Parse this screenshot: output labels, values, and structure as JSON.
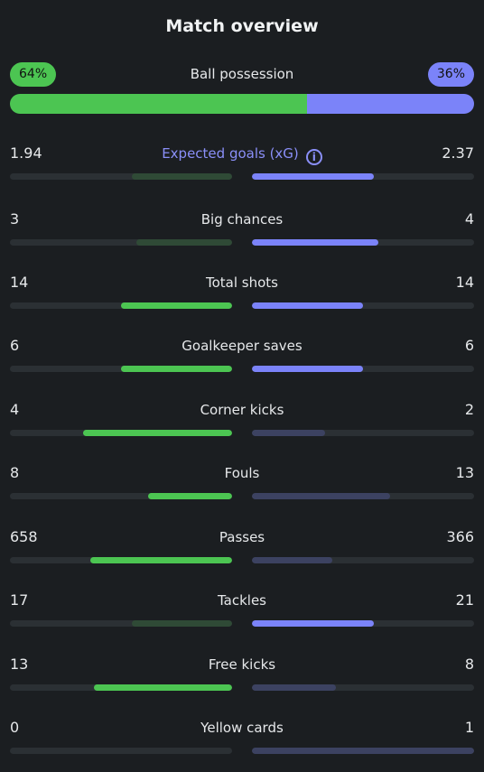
{
  "title": "Match overview",
  "possession": {
    "label": "Ball possession",
    "home": "64%",
    "away": "36%",
    "home_fraction": 0.64,
    "away_fraction": 0.36
  },
  "colors": {
    "home": "#4cc552",
    "away": "#7b83f9",
    "home_muted": "#2f4a36",
    "away_muted": "#3c4261",
    "track": "#2b3034",
    "background": "#1b1e21"
  },
  "stats": [
    {
      "label": "Expected goals (xG)",
      "home": "1.94",
      "away": "2.37",
      "home_frac": 0.45,
      "away_frac": 0.55,
      "leader": "away",
      "info_icon": "info-icon"
    },
    {
      "label": "Big chances",
      "home": "3",
      "away": "4",
      "home_frac": 0.43,
      "away_frac": 0.57,
      "leader": "away"
    },
    {
      "label": "Total shots",
      "home": "14",
      "away": "14",
      "home_frac": 0.5,
      "away_frac": 0.5,
      "leader": "both"
    },
    {
      "label": "Goalkeeper saves",
      "home": "6",
      "away": "6",
      "home_frac": 0.5,
      "away_frac": 0.5,
      "leader": "both"
    },
    {
      "label": "Corner kicks",
      "home": "4",
      "away": "2",
      "home_frac": 0.67,
      "away_frac": 0.33,
      "leader": "home"
    },
    {
      "label": "Fouls",
      "home": "8",
      "away": "13",
      "home_frac": 0.38,
      "away_frac": 0.62,
      "leader": "home"
    },
    {
      "label": "Passes",
      "home": "658",
      "away": "366",
      "home_frac": 0.64,
      "away_frac": 0.36,
      "leader": "home"
    },
    {
      "label": "Tackles",
      "home": "17",
      "away": "21",
      "home_frac": 0.45,
      "away_frac": 0.55,
      "leader": "away"
    },
    {
      "label": "Free kicks",
      "home": "13",
      "away": "8",
      "home_frac": 0.62,
      "away_frac": 0.38,
      "leader": "home"
    },
    {
      "label": "Yellow cards",
      "home": "0",
      "away": "1",
      "home_frac": 0.0,
      "away_frac": 1.0,
      "leader": "home"
    }
  ]
}
